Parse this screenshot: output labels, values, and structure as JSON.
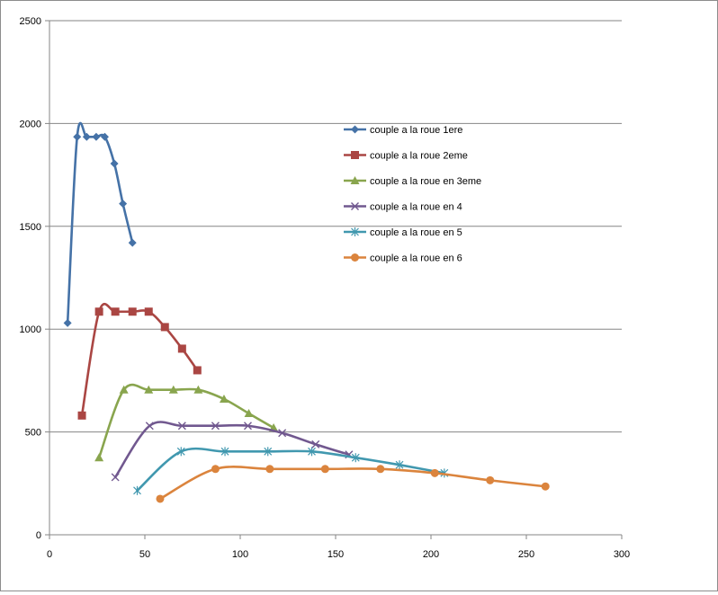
{
  "chart_data": {
    "type": "line",
    "title": "",
    "xlabel": "",
    "ylabel": "",
    "xlim": [
      0,
      300
    ],
    "ylim": [
      0,
      2500
    ],
    "x_ticks": [
      "0",
      "50",
      "100",
      "150",
      "200",
      "250",
      "300"
    ],
    "y_ticks": [
      "0",
      "500",
      "1000",
      "1500",
      "2000",
      "2500"
    ],
    "grid": "horizontal",
    "legend_position": "right",
    "series": [
      {
        "name": "couple a la roue 1ere",
        "color": "#4572A7",
        "marker": "diamond",
        "points": [
          [
            9.5,
            1030
          ],
          [
            14.5,
            1935
          ],
          [
            19.5,
            1935
          ],
          [
            24.5,
            1935
          ],
          [
            29,
            1935
          ],
          [
            34,
            1805
          ],
          [
            38.5,
            1610
          ],
          [
            43.5,
            1420
          ]
        ]
      },
      {
        "name": "couple a la roue 2eme",
        "color": "#AA4643",
        "marker": "square",
        "points": [
          [
            17,
            580
          ],
          [
            26,
            1085
          ],
          [
            34.5,
            1085
          ],
          [
            43.5,
            1085
          ],
          [
            52,
            1085
          ],
          [
            60.5,
            1010
          ],
          [
            69.5,
            905
          ],
          [
            77.5,
            800
          ]
        ]
      },
      {
        "name": "couple a la roue en 3eme",
        "color": "#89A54E",
        "marker": "triangle",
        "points": [
          [
            26,
            375
          ],
          [
            39,
            705
          ],
          [
            52,
            705
          ],
          [
            65,
            705
          ],
          [
            78,
            705
          ],
          [
            91.5,
            660
          ],
          [
            104.5,
            590
          ],
          [
            117.5,
            520
          ]
        ]
      },
      {
        "name": "couple a la roue en 4",
        "color": "#71588F",
        "marker": "x",
        "points": [
          [
            34.5,
            280
          ],
          [
            52.5,
            530
          ],
          [
            69.5,
            530
          ],
          [
            87,
            530
          ],
          [
            104,
            530
          ],
          [
            122,
            495
          ],
          [
            139.5,
            440
          ],
          [
            157,
            390
          ]
        ]
      },
      {
        "name": "couple a la roue en 5",
        "color": "#4198AF",
        "marker": "star",
        "points": [
          [
            46,
            215
          ],
          [
            69,
            405
          ],
          [
            92,
            405
          ],
          [
            114.5,
            405
          ],
          [
            137.5,
            405
          ],
          [
            160.5,
            375
          ],
          [
            183.5,
            340
          ],
          [
            207,
            300
          ]
        ]
      },
      {
        "name": "couple a la roue en 6",
        "color": "#DB843D",
        "marker": "circle",
        "points": [
          [
            58,
            175
          ],
          [
            87,
            320
          ],
          [
            115.5,
            320
          ],
          [
            144.5,
            320
          ],
          [
            173.5,
            320
          ],
          [
            202,
            300
          ],
          [
            231,
            265
          ],
          [
            260,
            235
          ]
        ]
      }
    ]
  }
}
